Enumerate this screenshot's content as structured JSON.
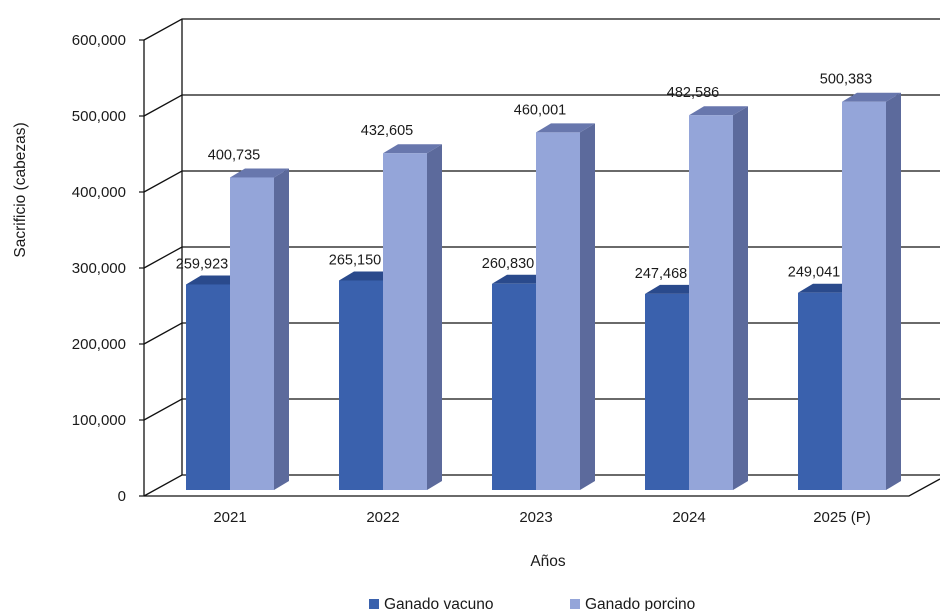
{
  "chart_data": {
    "type": "bar",
    "categories": [
      "2021",
      "2022",
      "2023",
      "2024",
      "2025 (P)"
    ],
    "series": [
      {
        "name": "Ganado vacuno",
        "values": [
          259923,
          265150,
          260830,
          247468,
          249041
        ],
        "labels": [
          "259,923",
          "265,150",
          "260,830",
          "247,468",
          "249,041"
        ]
      },
      {
        "name": "Ganado porcino",
        "values": [
          400735,
          432605,
          460001,
          482586,
          500383
        ],
        "labels": [
          "400,735",
          "432,605",
          "460,001",
          "482,586",
          "500,383"
        ]
      }
    ],
    "y_ticks": [
      "0",
      "100,000",
      "200,000",
      "300,000",
      "400,000",
      "500,000",
      "600,000"
    ],
    "ylim": [
      0,
      600000
    ],
    "xlabel": "Años",
    "ylabel": "Sacrificio (cabezas)",
    "legend_position": "bottom",
    "grid": true,
    "style": "3d-clustered-column"
  },
  "colors": {
    "Ganado vacuno": {
      "front": "#3a61ad",
      "top": "#2a4a8c",
      "side": "#274479"
    },
    "Ganado porcino": {
      "front": "#94a5d9",
      "top": "#6877ad",
      "side": "#5c6a9c"
    }
  }
}
